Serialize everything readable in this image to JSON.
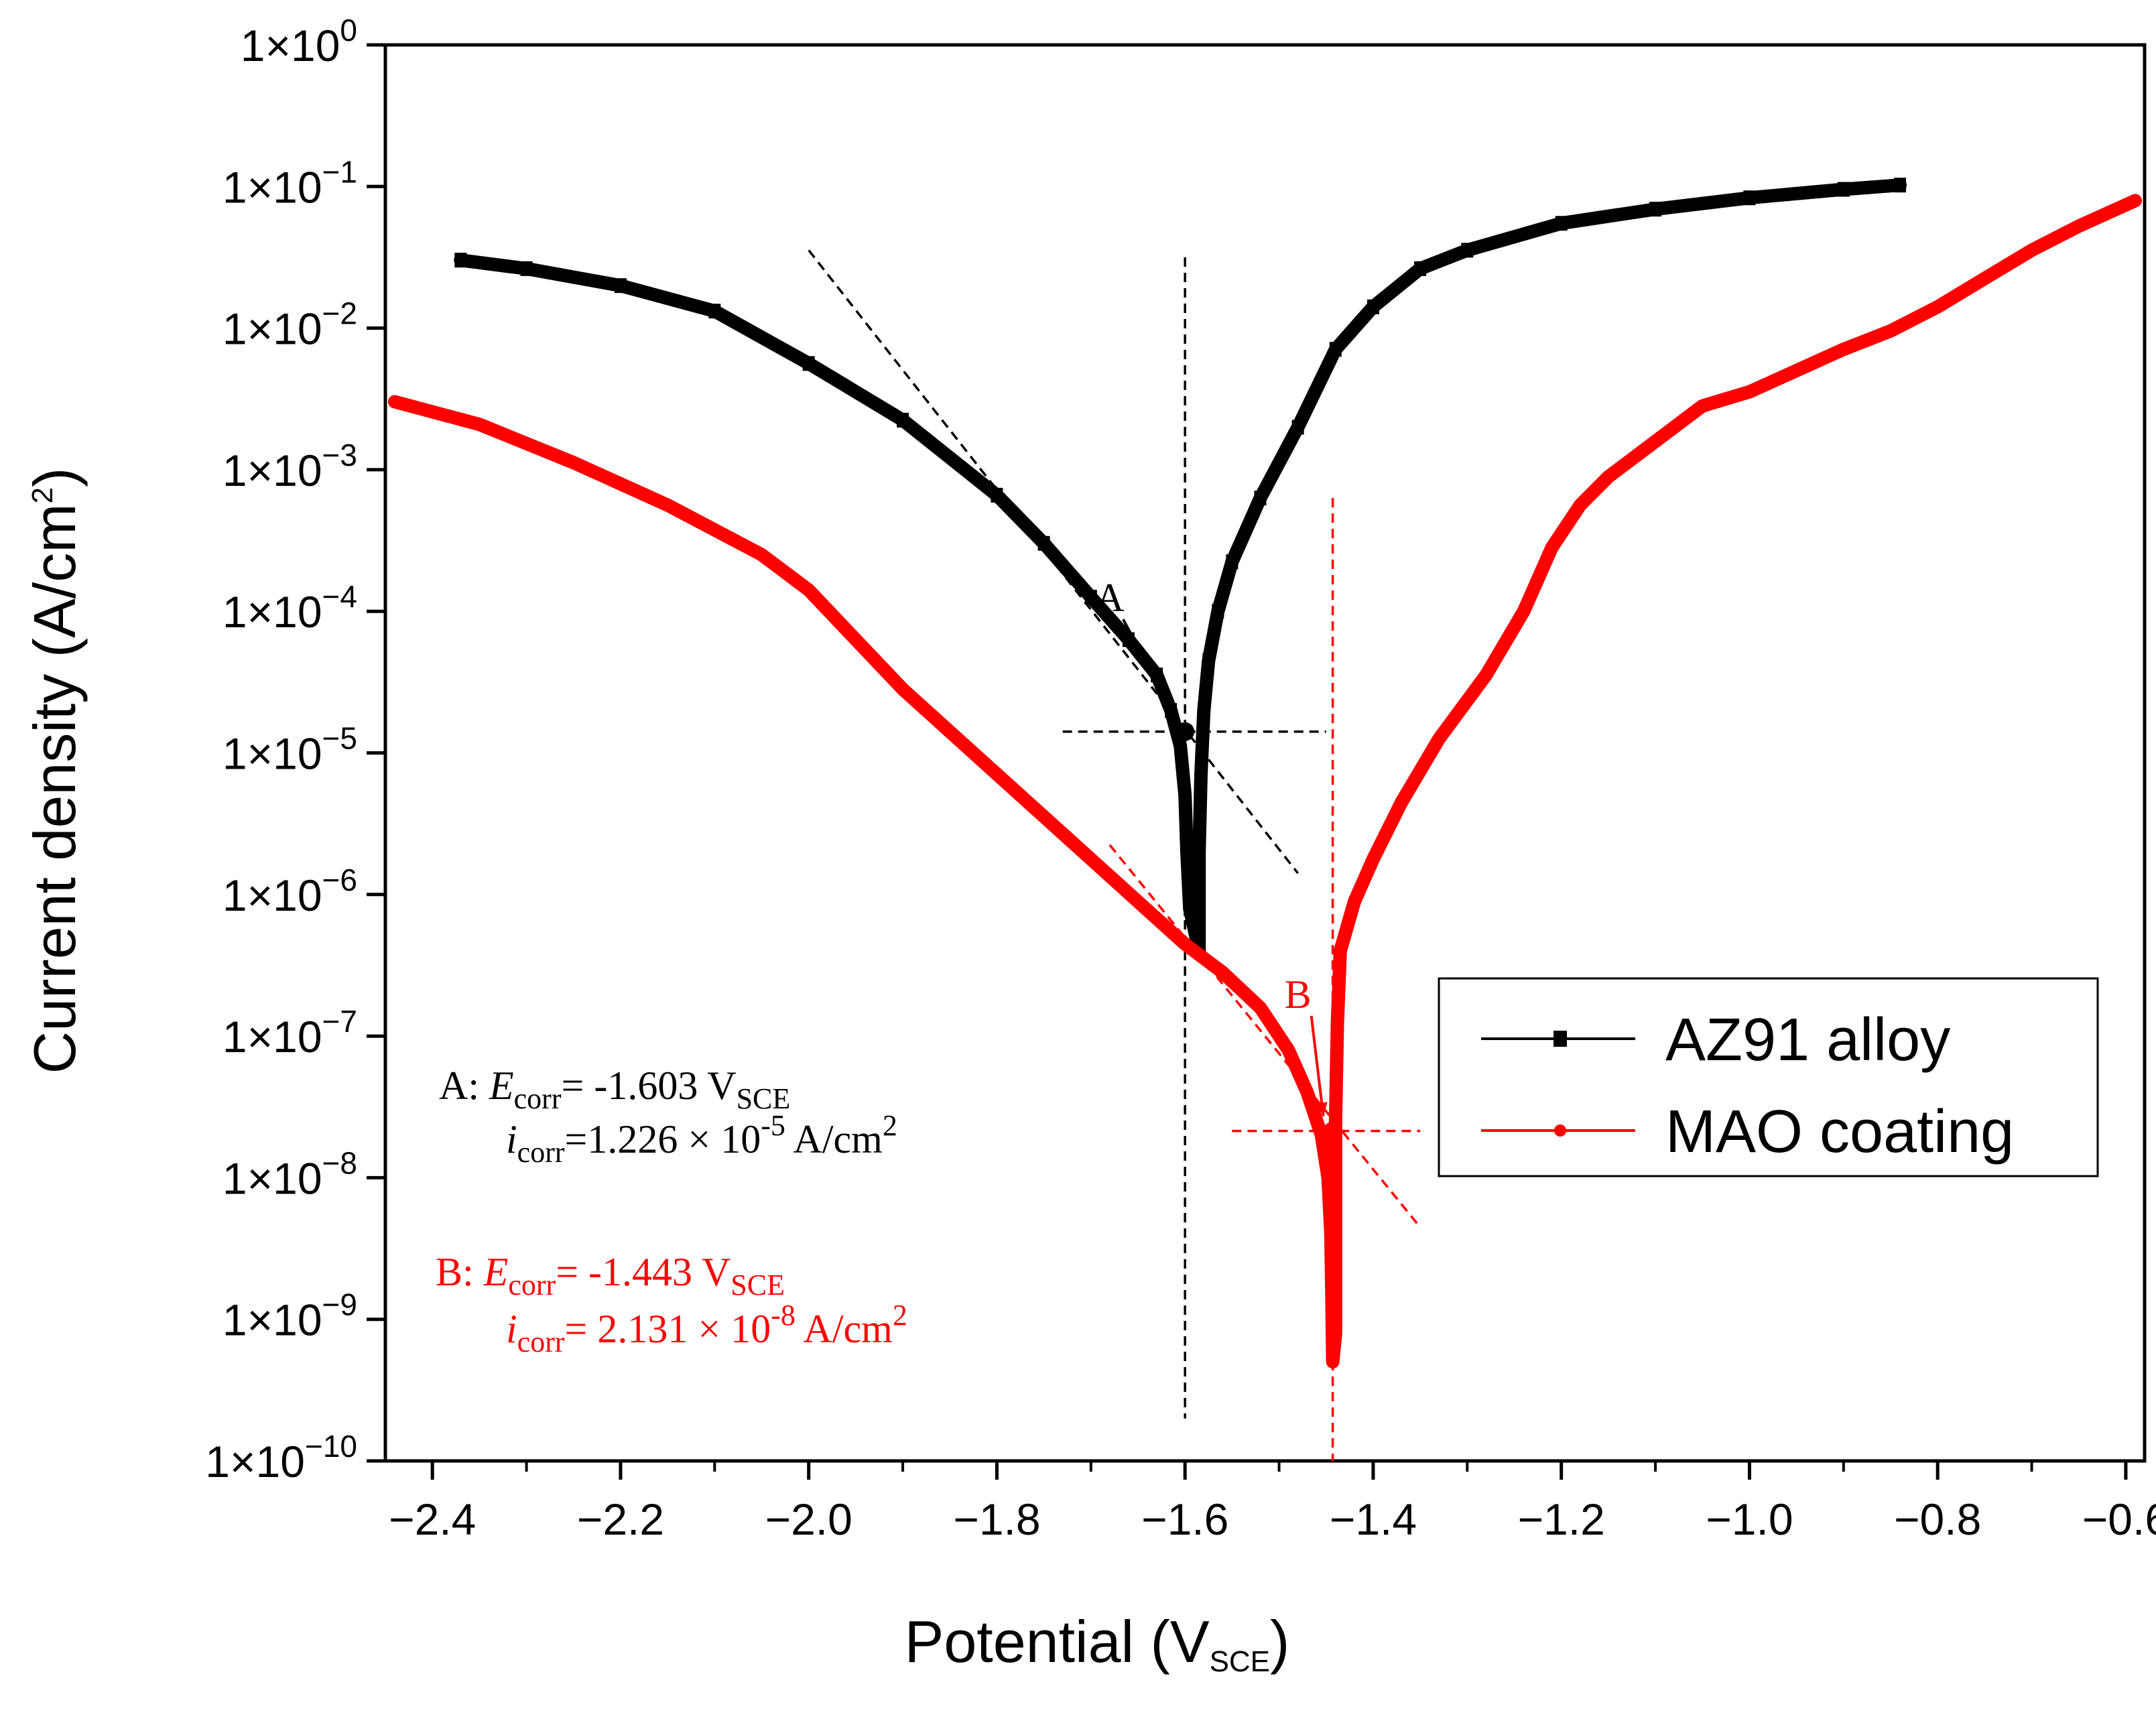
{
  "chart_data": {
    "type": "line",
    "xlabel": "Potential (V",
    "xlabel_sub": "SCE",
    "xlabel_close": ")",
    "ylabel": "Current density (A/cm",
    "ylabel_sup": "2",
    "ylabel_close": ")",
    "xlim": [
      -2.45,
      -0.58
    ],
    "ylim_log10": [
      -10,
      0
    ],
    "y_scale": "log",
    "x_ticks": [
      {
        "value": -2.4,
        "label": "−2.4"
      },
      {
        "value": -2.2,
        "label": "−2.2"
      },
      {
        "value": -2.0,
        "label": "−2.0"
      },
      {
        "value": -1.8,
        "label": "−1.8"
      },
      {
        "value": -1.6,
        "label": "−1.6"
      },
      {
        "value": -1.4,
        "label": "−1.4"
      },
      {
        "value": -1.2,
        "label": "−1.2"
      },
      {
        "value": -1.0,
        "label": "−1.0"
      },
      {
        "value": -0.8,
        "label": "−0.8"
      },
      {
        "value": -0.6,
        "label": "−0.6"
      }
    ],
    "y_ticks": [
      {
        "exp": 0,
        "base": "1×10",
        "sup": "0"
      },
      {
        "exp": -1,
        "base": "1×10",
        "sup": "−1"
      },
      {
        "exp": -2,
        "base": "1×10",
        "sup": "−2"
      },
      {
        "exp": -3,
        "base": "1×10",
        "sup": "−3"
      },
      {
        "exp": -4,
        "base": "1×10",
        "sup": "−4"
      },
      {
        "exp": -5,
        "base": "1×10",
        "sup": "−5"
      },
      {
        "exp": -6,
        "base": "1×10",
        "sup": "−6"
      },
      {
        "exp": -7,
        "base": "1×10",
        "sup": "−7"
      },
      {
        "exp": -8,
        "base": "1×10",
        "sup": "−8"
      },
      {
        "exp": -9,
        "base": "1×10",
        "sup": "−9"
      },
      {
        "exp": -10,
        "base": "1×10",
        "sup": "−10"
      }
    ],
    "legend_position": "right",
    "series": [
      {
        "name": "AZ91 alloy",
        "color": "#000000",
        "marker": "square",
        "points": [
          [
            -2.37,
            -1.52
          ],
          [
            -2.3,
            -1.58
          ],
          [
            -2.2,
            -1.7
          ],
          [
            -2.1,
            -1.88
          ],
          [
            -2.0,
            -2.25
          ],
          [
            -1.9,
            -2.65
          ],
          [
            -1.8,
            -3.18
          ],
          [
            -1.75,
            -3.52
          ],
          [
            -1.7,
            -3.9
          ],
          [
            -1.66,
            -4.2
          ],
          [
            -1.63,
            -4.45
          ],
          [
            -1.615,
            -4.7
          ],
          [
            -1.605,
            -4.95
          ],
          [
            -1.6,
            -5.3
          ],
          [
            -1.598,
            -5.7
          ],
          [
            -1.595,
            -6.1
          ],
          [
            -1.585,
            -6.4
          ],
          [
            -1.585,
            -5.7
          ],
          [
            -1.583,
            -5.15
          ],
          [
            -1.58,
            -4.7
          ],
          [
            -1.575,
            -4.35
          ],
          [
            -1.565,
            -4.0
          ],
          [
            -1.55,
            -3.65
          ],
          [
            -1.52,
            -3.2
          ],
          [
            -1.48,
            -2.7
          ],
          [
            -1.44,
            -2.15
          ],
          [
            -1.4,
            -1.85
          ],
          [
            -1.35,
            -1.58
          ],
          [
            -1.3,
            -1.45
          ],
          [
            -1.2,
            -1.26
          ],
          [
            -1.1,
            -1.16
          ],
          [
            -1.0,
            -1.08
          ],
          [
            -0.9,
            -1.02
          ],
          [
            -0.84,
            -0.99
          ]
        ]
      },
      {
        "name": "MAO coating",
        "color": "#ff0000",
        "marker": "circle",
        "points": [
          [
            -2.44,
            -2.52
          ],
          [
            -2.35,
            -2.68
          ],
          [
            -2.25,
            -2.95
          ],
          [
            -2.15,
            -3.25
          ],
          [
            -2.05,
            -3.6
          ],
          [
            -2.0,
            -3.85
          ],
          [
            -1.95,
            -4.2
          ],
          [
            -1.9,
            -4.55
          ],
          [
            -1.85,
            -4.85
          ],
          [
            -1.8,
            -5.15
          ],
          [
            -1.75,
            -5.45
          ],
          [
            -1.7,
            -5.75
          ],
          [
            -1.65,
            -6.05
          ],
          [
            -1.6,
            -6.35
          ],
          [
            -1.56,
            -6.55
          ],
          [
            -1.52,
            -6.8
          ],
          [
            -1.49,
            -7.1
          ],
          [
            -1.47,
            -7.4
          ],
          [
            -1.455,
            -7.7
          ],
          [
            -1.448,
            -8.0
          ],
          [
            -1.445,
            -8.4
          ],
          [
            -1.444,
            -8.8
          ],
          [
            -1.443,
            -9.3
          ],
          [
            -1.44,
            -9.1
          ],
          [
            -1.44,
            -7.6
          ],
          [
            -1.438,
            -6.9
          ],
          [
            -1.435,
            -6.4
          ],
          [
            -1.42,
            -6.05
          ],
          [
            -1.4,
            -5.75
          ],
          [
            -1.37,
            -5.35
          ],
          [
            -1.33,
            -4.9
          ],
          [
            -1.28,
            -4.45
          ],
          [
            -1.24,
            -4.0
          ],
          [
            -1.21,
            -3.55
          ],
          [
            -1.18,
            -3.25
          ],
          [
            -1.15,
            -3.05
          ],
          [
            -1.1,
            -2.8
          ],
          [
            -1.05,
            -2.55
          ],
          [
            -1.0,
            -2.45
          ],
          [
            -0.95,
            -2.3
          ],
          [
            -0.9,
            -2.15
          ],
          [
            -0.85,
            -2.02
          ],
          [
            -0.8,
            -1.85
          ],
          [
            -0.75,
            -1.65
          ],
          [
            -0.7,
            -1.45
          ],
          [
            -0.65,
            -1.28
          ],
          [
            -0.59,
            -1.1
          ]
        ]
      }
    ],
    "tafel_lines": [
      {
        "color": "#000000",
        "from": [
          -2.0,
          -1.45
        ],
        "to": [
          -1.48,
          -5.85
        ]
      },
      {
        "color": "#ff0000",
        "from": [
          -1.68,
          -5.65
        ],
        "to": [
          -1.35,
          -8.35
        ]
      }
    ],
    "ecorr_lines": [
      {
        "color": "#000000",
        "x": -1.6,
        "ymin": -9.7,
        "ymax": -1.5,
        "hy": -4.85,
        "hxmin": -1.73,
        "hxmax": -1.45
      },
      {
        "color": "#ff0000",
        "x": -1.443,
        "ymin": -10.0,
        "ymax": -3.2,
        "hy": -7.67,
        "hxmin": -1.55,
        "hxmax": -1.35
      }
    ],
    "markers": [
      {
        "label": "A",
        "color": "#000000",
        "x": -1.6,
        "y": -4.85,
        "label_x": -1.68,
        "label_y": -4.0
      },
      {
        "label": "B",
        "color": "#ff0000",
        "x": -1.443,
        "y": -7.67,
        "label_x": -1.48,
        "label_y": -6.8
      }
    ],
    "annotations": {
      "A": {
        "color": "#000000",
        "line1": {
          "prefix": "A: ",
          "sym": "E",
          "sub": "corr",
          "eq": "= -1.603 V",
          "unit_sub": "SCE"
        },
        "line2": {
          "sym": "i",
          "sub": "corr",
          "eq": "=1.226 × 10",
          "sup": "-5",
          "tail": " A/cm",
          "tail_sup": "2"
        }
      },
      "B": {
        "color": "#ff0000",
        "line1": {
          "prefix": "B:  ",
          "sym": "E",
          "sub": "corr",
          "eq": "= -1.443 V",
          "unit_sub": "SCE"
        },
        "line2": {
          "sym": "i",
          "sub": "corr",
          "eq": "= 2.131 × 10",
          "sup": "-8",
          "tail": " A/cm",
          "tail_sup": "2"
        }
      }
    }
  }
}
